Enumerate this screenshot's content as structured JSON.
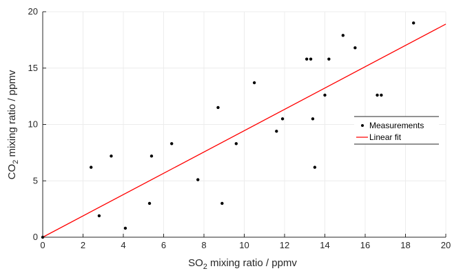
{
  "chart_data": {
    "type": "scatter",
    "xlabel_parts": [
      "SO",
      "2",
      " mixing ratio / ppmv"
    ],
    "ylabel_parts": [
      "CO",
      "2",
      " mixing ratio / ppmv"
    ],
    "xlim": [
      0,
      20
    ],
    "ylim": [
      0,
      20
    ],
    "xticks": [
      0,
      2,
      4,
      6,
      8,
      10,
      12,
      14,
      16,
      18,
      20
    ],
    "yticks": [
      0,
      5,
      10,
      15,
      20
    ],
    "grid": true,
    "legend_position": "right",
    "series": [
      {
        "name": "Measurements",
        "marker": "dot",
        "color": "#000000",
        "points": [
          [
            0.0,
            0.0
          ],
          [
            2.4,
            6.2
          ],
          [
            2.8,
            1.9
          ],
          [
            3.4,
            7.2
          ],
          [
            4.1,
            0.8
          ],
          [
            5.3,
            3.0
          ],
          [
            5.4,
            7.2
          ],
          [
            6.4,
            8.3
          ],
          [
            7.7,
            5.1
          ],
          [
            8.7,
            11.5
          ],
          [
            8.9,
            3.0
          ],
          [
            9.6,
            8.3
          ],
          [
            10.5,
            13.7
          ],
          [
            11.6,
            9.4
          ],
          [
            11.9,
            10.5
          ],
          [
            13.1,
            15.8
          ],
          [
            13.3,
            15.8
          ],
          [
            13.4,
            10.5
          ],
          [
            13.5,
            6.2
          ],
          [
            14.0,
            12.6
          ],
          [
            14.2,
            15.8
          ],
          [
            14.9,
            17.9
          ],
          [
            15.5,
            16.8
          ],
          [
            16.6,
            12.6
          ],
          [
            16.8,
            12.6
          ],
          [
            18.4,
            19.0
          ]
        ]
      },
      {
        "name": "Linear fit",
        "marker": "line",
        "color": "#ff0000",
        "points": [
          [
            0,
            0
          ],
          [
            20,
            18.9
          ]
        ]
      }
    ]
  }
}
